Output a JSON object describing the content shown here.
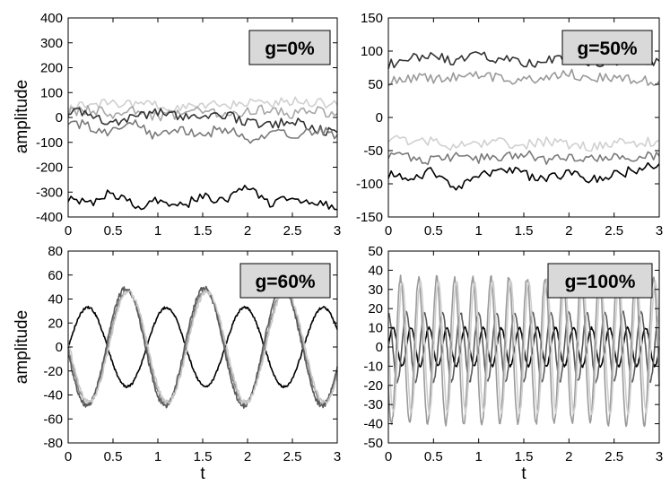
{
  "figure": {
    "ylabel_left": "amplitude",
    "xlabel_bottom": "t"
  },
  "chart_data": [
    {
      "type": "line",
      "annotation": "g=0%",
      "ylabel": "amplitude",
      "xlabel": "",
      "xlim": [
        0,
        3
      ],
      "ylim": [
        -400,
        400
      ],
      "xticks": [
        "0",
        "0.5",
        "1",
        "1.5",
        "2",
        "2.5",
        "3"
      ],
      "yticks": [
        "400",
        "300",
        "200",
        "100",
        "0",
        "-100",
        "-200",
        "-300",
        "-400"
      ],
      "grid": false,
      "series": [
        {
          "color": "#d0d0d0",
          "x": [
            0,
            0.25,
            0.5,
            0.75,
            1,
            1.25,
            1.5,
            1.75,
            2,
            2.25,
            2.5,
            2.75,
            3
          ],
          "values": [
            40,
            55,
            60,
            50,
            45,
            40,
            55,
            50,
            60,
            55,
            70,
            60,
            50
          ]
        },
        {
          "color": "#a8a8a8",
          "x": [
            0,
            0.25,
            0.5,
            0.75,
            1,
            1.25,
            1.5,
            1.75,
            2,
            2.25,
            2.5,
            2.75,
            3
          ],
          "values": [
            20,
            35,
            10,
            25,
            0,
            15,
            30,
            5,
            20,
            35,
            10,
            25,
            15
          ]
        },
        {
          "color": "#333333",
          "x": [
            0,
            0.25,
            0.5,
            0.75,
            1,
            1.25,
            1.5,
            1.75,
            2,
            2.25,
            2.5,
            2.75,
            3
          ],
          "values": [
            30,
            10,
            -20,
            0,
            20,
            5,
            -10,
            10,
            -15,
            -30,
            -10,
            -45,
            -60
          ]
        },
        {
          "color": "#7a7a7a",
          "x": [
            0,
            0.25,
            0.5,
            0.75,
            1,
            1.25,
            1.5,
            1.75,
            2,
            2.25,
            2.5,
            2.75,
            3
          ],
          "values": [
            -10,
            -40,
            -60,
            -30,
            -80,
            -50,
            -70,
            -40,
            -90,
            -60,
            -75,
            -50,
            -70
          ]
        },
        {
          "color": "#000000",
          "x": [
            0,
            0.25,
            0.5,
            0.75,
            1,
            1.25,
            1.5,
            1.75,
            2,
            2.25,
            2.5,
            2.75,
            3
          ],
          "values": [
            -320,
            -340,
            -300,
            -360,
            -330,
            -360,
            -310,
            -340,
            -280,
            -350,
            -320,
            -340,
            -370
          ]
        }
      ]
    },
    {
      "type": "line",
      "annotation": "g=50%",
      "ylabel": "",
      "xlabel": "",
      "xlim": [
        0,
        3
      ],
      "ylim": [
        -150,
        150
      ],
      "xticks": [
        "0",
        "0.5",
        "1",
        "1.5",
        "2",
        "2.5",
        "3"
      ],
      "yticks": [
        "150",
        "100",
        "50",
        "0",
        "-50",
        "-100",
        "-150"
      ],
      "grid": false,
      "series": [
        {
          "color": "#333333",
          "x": [
            0,
            0.25,
            0.5,
            0.75,
            1,
            1.25,
            1.5,
            1.75,
            2,
            2.25,
            2.5,
            2.75,
            3
          ],
          "values": [
            80,
            90,
            92,
            85,
            95,
            88,
            80,
            86,
            92,
            84,
            82,
            88,
            85
          ]
        },
        {
          "color": "#9a9a9a",
          "x": [
            0,
            0.25,
            0.5,
            0.75,
            1,
            1.25,
            1.5,
            1.75,
            2,
            2.25,
            2.5,
            2.75,
            3
          ],
          "values": [
            55,
            60,
            58,
            62,
            65,
            60,
            55,
            62,
            66,
            58,
            62,
            56,
            55
          ]
        },
        {
          "color": "#d0d0d0",
          "x": [
            0,
            0.25,
            0.5,
            0.75,
            1,
            1.25,
            1.5,
            1.75,
            2,
            2.25,
            2.5,
            2.75,
            3
          ],
          "values": [
            -30,
            -40,
            -35,
            -45,
            -40,
            -38,
            -42,
            -35,
            -40,
            -45,
            -38,
            -40,
            -35
          ]
        },
        {
          "color": "#7a7a7a",
          "x": [
            0,
            0.25,
            0.5,
            0.75,
            1,
            1.25,
            1.5,
            1.75,
            2,
            2.25,
            2.5,
            2.75,
            3
          ],
          "values": [
            -55,
            -60,
            -65,
            -58,
            -62,
            -60,
            -55,
            -65,
            -60,
            -62,
            -58,
            -60,
            -58
          ]
        },
        {
          "color": "#000000",
          "x": [
            0,
            0.25,
            0.5,
            0.75,
            1,
            1.25,
            1.5,
            1.75,
            2,
            2.25,
            2.5,
            2.75,
            3
          ],
          "values": [
            -85,
            -95,
            -80,
            -105,
            -90,
            -75,
            -85,
            -95,
            -80,
            -95,
            -85,
            -80,
            -70
          ]
        }
      ]
    },
    {
      "type": "line",
      "annotation": "g=60%",
      "ylabel": "amplitude",
      "xlabel": "t",
      "xlim": [
        0,
        3
      ],
      "ylim": [
        -80,
        80
      ],
      "xticks": [
        "0",
        "0.5",
        "1",
        "1.5",
        "2",
        "2.5",
        "3"
      ],
      "yticks": [
        "80",
        "60",
        "40",
        "20",
        "0",
        "-20",
        "-40",
        "-60",
        "-80"
      ],
      "grid": false,
      "waveform": {
        "period": 0.875
      },
      "series": [
        {
          "color": "#000000",
          "amplitude": 33,
          "phase": 0,
          "offset": 0,
          "noise": 1
        },
        {
          "color": "#8a8a8a",
          "amplitude": 47,
          "phase": 3.14,
          "offset": 0,
          "noise": 2
        },
        {
          "color": "#5a5a5a",
          "amplitude": 49,
          "phase": 3.24,
          "offset": 0,
          "noise": 2
        },
        {
          "color": "#c8c8c8",
          "amplitude": 46,
          "phase": 3.04,
          "offset": 0,
          "noise": 2
        }
      ]
    },
    {
      "type": "line",
      "annotation": "g=100%",
      "ylabel": "",
      "xlabel": "t",
      "xlim": [
        0,
        3
      ],
      "ylim": [
        -50,
        50
      ],
      "xticks": [
        "0",
        "0.5",
        "1",
        "1.5",
        "2",
        "2.5",
        "3"
      ],
      "yticks": [
        "50",
        "40",
        "30",
        "20",
        "10",
        "0",
        "-10",
        "-20",
        "-30",
        "-40",
        "-50"
      ],
      "grid": false,
      "waveform": {
        "period": 0.2
      },
      "series": [
        {
          "color": "#000000",
          "amplitude": 10,
          "phase": 0,
          "offset": 0,
          "noise": 0.6
        },
        {
          "color": "#5a5a5a",
          "amplitude": 18,
          "phase": 1.6,
          "offset": 0,
          "noise": 0.8
        },
        {
          "color": "#9a9a9a",
          "amplitude": 38,
          "phase": 3.6,
          "offset": -2,
          "noise": 1.5
        },
        {
          "color": "#cfcfcf",
          "amplitude": 34,
          "phase": 3.0,
          "offset": 0,
          "noise": 1.5
        }
      ]
    }
  ]
}
